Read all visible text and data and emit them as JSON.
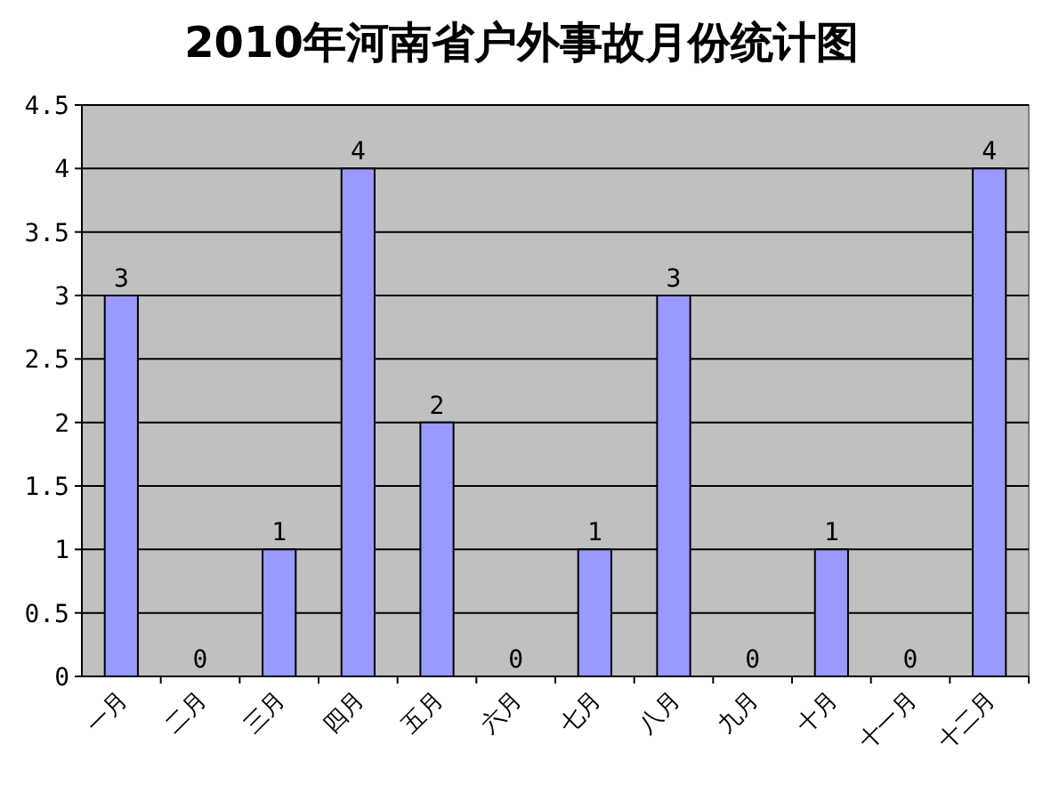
{
  "chart_data": {
    "type": "bar",
    "title": "2010年河南省户外事故月份统计图",
    "categories": [
      "一月",
      "二月",
      "三月",
      "四月",
      "五月",
      "六月",
      "七月",
      "八月",
      "九月",
      "十月",
      "十一月",
      "十二月"
    ],
    "values": [
      3,
      0,
      1,
      4,
      2,
      0,
      1,
      3,
      0,
      1,
      0,
      4
    ],
    "color": "#9999ff",
    "ylim": [
      0,
      4.5
    ],
    "yticks": [
      0,
      0.5,
      1,
      1.5,
      2,
      2.5,
      3,
      3.5,
      4,
      4.5
    ],
    "grid": "y",
    "data_labels": true
  }
}
